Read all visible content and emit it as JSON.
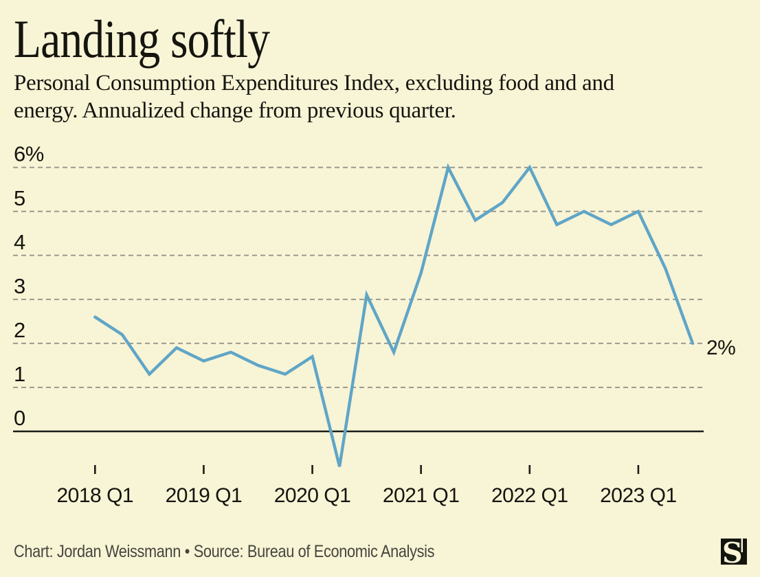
{
  "header": {
    "title": "Landing softly",
    "subtitle_lines": [
      "Personal Consumption Expenditures Index, excluding food and and",
      "energy. Annualized change from previous quarter."
    ]
  },
  "chart_data": {
    "type": "line",
    "title": "Landing softly",
    "subtitle": "Personal Consumption Expenditures Index, excluding food and and energy. Annualized change from previous quarter.",
    "x": [
      "2018 Q1",
      "2018 Q2",
      "2018 Q3",
      "2018 Q4",
      "2019 Q1",
      "2019 Q2",
      "2019 Q3",
      "2019 Q4",
      "2020 Q1",
      "2020 Q2",
      "2020 Q3",
      "2020 Q4",
      "2021 Q1",
      "2021 Q2",
      "2021 Q3",
      "2021 Q4",
      "2022 Q1",
      "2022 Q2",
      "2022 Q3",
      "2022 Q4",
      "2023 Q1",
      "2023 Q2",
      "2023 Q3"
    ],
    "values": [
      2.6,
      2.2,
      1.3,
      1.9,
      1.6,
      1.8,
      1.5,
      1.3,
      1.7,
      -0.8,
      3.1,
      1.8,
      3.6,
      6.0,
      4.8,
      5.2,
      6.0,
      4.7,
      5.0,
      4.7,
      5.0,
      3.7,
      2.0
    ],
    "y_ticks": [
      {
        "value": 6,
        "label": "6%"
      },
      {
        "value": 5,
        "label": "5"
      },
      {
        "value": 4,
        "label": "4"
      },
      {
        "value": 3,
        "label": "3"
      },
      {
        "value": 2,
        "label": "2"
      },
      {
        "value": 1,
        "label": "1"
      },
      {
        "value": 0,
        "label": "0"
      }
    ],
    "x_ticks": [
      {
        "index": 0,
        "label": "2018 Q1"
      },
      {
        "index": 4,
        "label": "2019 Q1"
      },
      {
        "index": 8,
        "label": "2020 Q1"
      },
      {
        "index": 12,
        "label": "2021 Q1"
      },
      {
        "index": 16,
        "label": "2022 Q1"
      },
      {
        "index": 20,
        "label": "2023 Q1"
      }
    ],
    "end_label": "2%",
    "ylim": [
      -0.9,
      6.4
    ],
    "grid": "horizontal-dashed",
    "zero_line": true,
    "legend": "none"
  },
  "footer": {
    "credit": "Chart: Jordan Weissmann • Source: Bureau of Economic Analysis",
    "logo": "semafor-s-logomark",
    "logo_letter": "S"
  },
  "colors": {
    "background": "#f8f4d6",
    "line": "#5fa5c7",
    "grid": "#9a9a8f",
    "axis_line": "#1b1b16",
    "text": "#15150f",
    "muted_text": "#45453d",
    "logo_bg": "#15150f"
  }
}
